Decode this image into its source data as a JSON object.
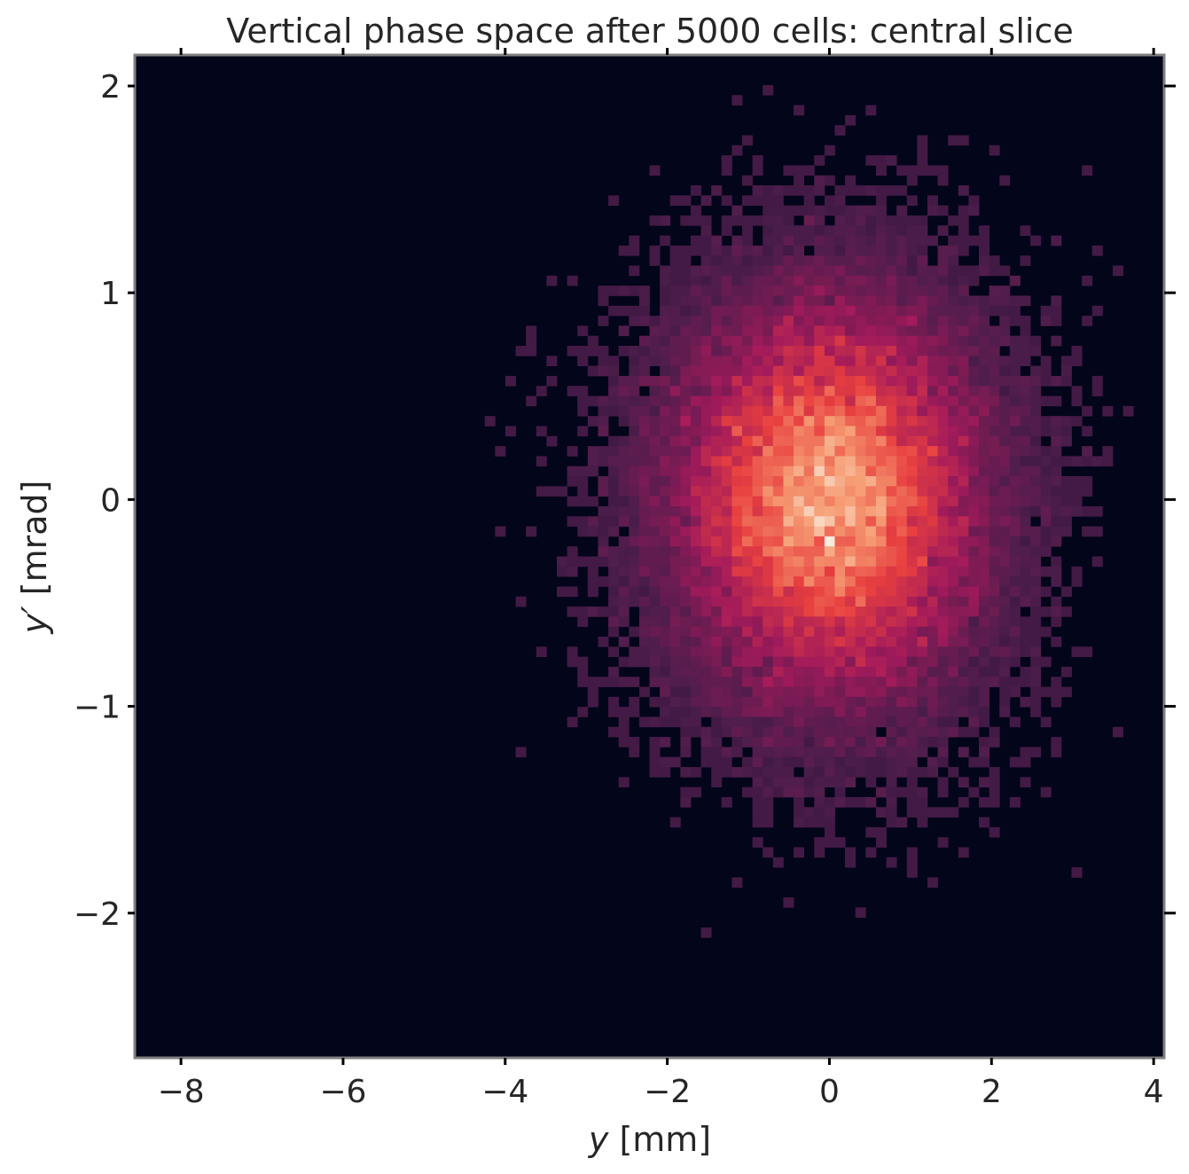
{
  "chart_data": {
    "type": "heatmap",
    "title": "Vertical phase space after 5000 cells: central slice",
    "xlabel": {
      "var": "y",
      "unit": " [mm]"
    },
    "ylabel": {
      "var": "y′",
      "unit": " [mrad]"
    },
    "xlim": [
      -8.57,
      4.13
    ],
    "ylim": [
      -2.7,
      2.15
    ],
    "x_ticks": [
      {
        "value": -8,
        "label": "−8"
      },
      {
        "value": -6,
        "label": "−6"
      },
      {
        "value": -4,
        "label": "−4"
      },
      {
        "value": -2,
        "label": "−2"
      },
      {
        "value": 0,
        "label": "0"
      },
      {
        "value": 2,
        "label": "2"
      },
      {
        "value": 4,
        "label": "4"
      }
    ],
    "y_ticks": [
      {
        "value": 2,
        "label": "2"
      },
      {
        "value": 1,
        "label": "1"
      },
      {
        "value": 0,
        "label": "0"
      },
      {
        "value": -1,
        "label": "−1"
      },
      {
        "value": -2,
        "label": "−2"
      }
    ],
    "bins": {
      "nx": 100,
      "ny": 100
    },
    "distribution": {
      "center_y_mm": 0.0,
      "center_yp_mrad": 0.0,
      "sigma_y_mm": 1.0,
      "sigma_yp_mrad": 0.5
    },
    "colormap": [
      "#03051a",
      "#4c1d4b",
      "#a11a5b",
      "#e83f3f",
      "#f69c73",
      "#faebdd"
    ],
    "grid": false,
    "colors": {
      "frame": "#808080",
      "background": "#03051a"
    }
  }
}
